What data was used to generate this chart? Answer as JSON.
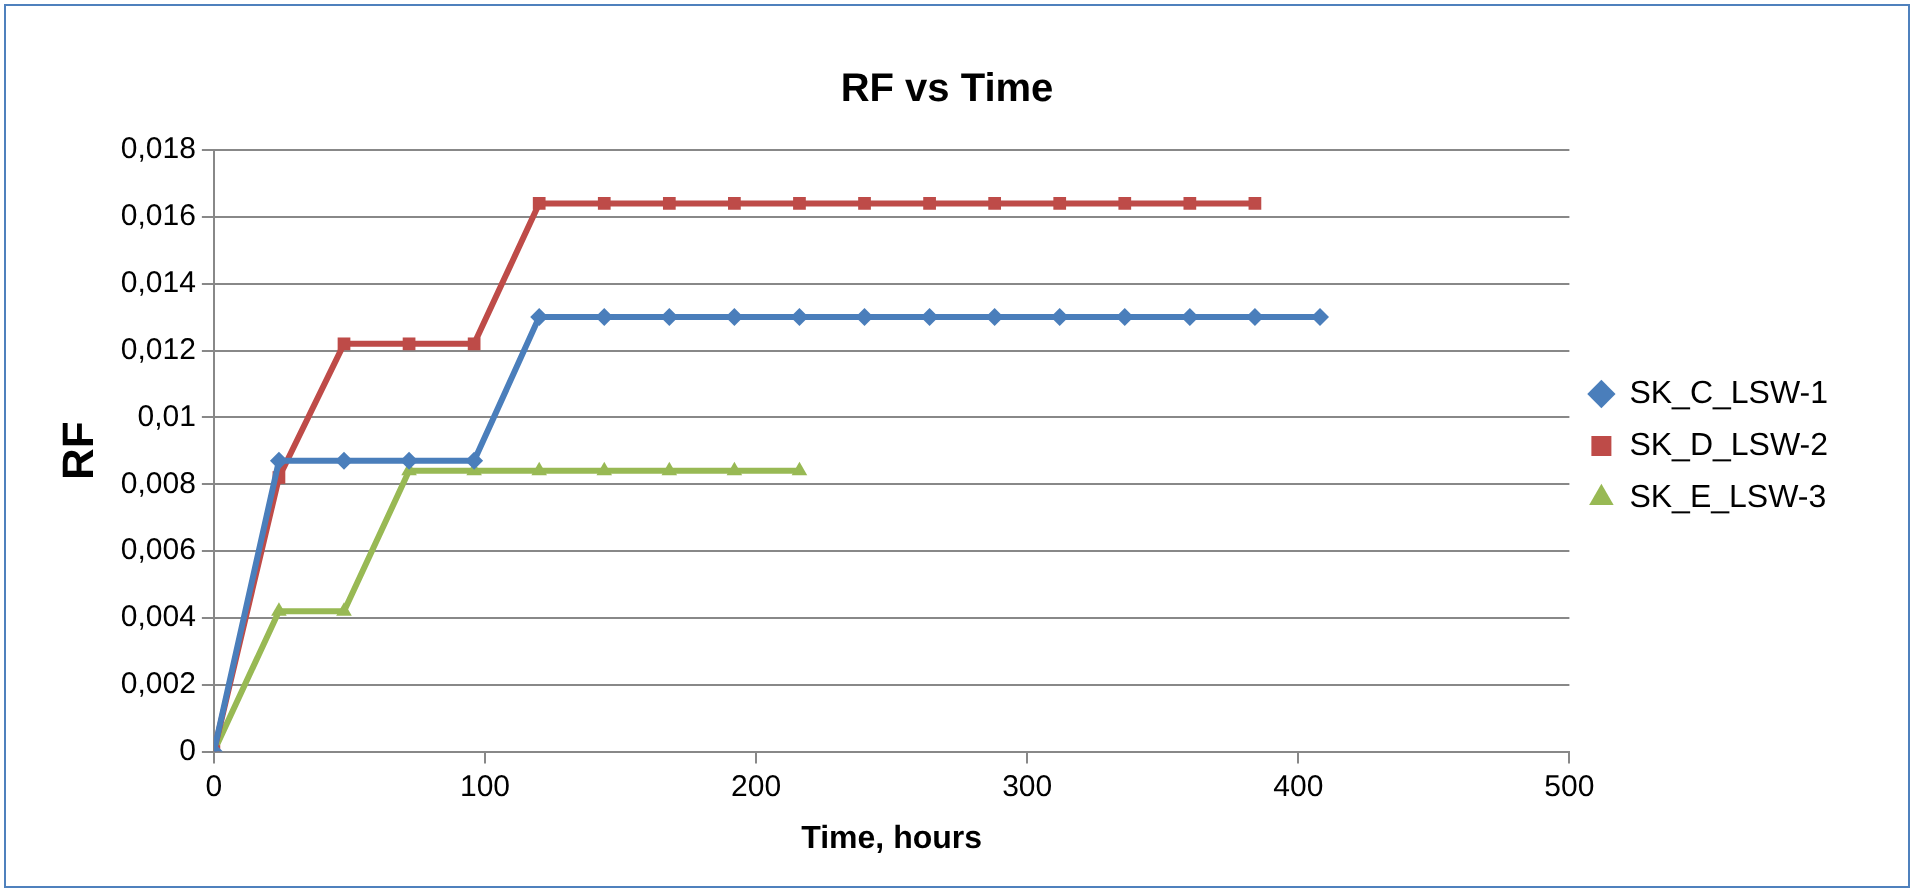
{
  "chart_data": {
    "type": "line",
    "title": "RF vs Time",
    "xlabel": "Time, hours",
    "ylabel": "RF",
    "x": [
      0,
      24,
      48,
      72,
      96,
      120,
      144,
      168,
      192,
      216,
      240,
      264,
      288,
      312,
      336,
      360,
      384,
      408
    ],
    "series": [
      {
        "name": "SK_C_LSW-1",
        "color": "#4a7ebb",
        "marker": "diamond",
        "values": [
          0,
          0.0087,
          0.0087,
          0.0087,
          0.0087,
          0.013,
          0.013,
          0.013,
          0.013,
          0.013,
          0.013,
          0.013,
          0.013,
          0.013,
          0.013,
          0.013,
          0.013,
          0.013
        ]
      },
      {
        "name": "SK_D_LSW-2",
        "color": "#be4b48",
        "marker": "square",
        "values": [
          0,
          0.0082,
          0.0122,
          0.0122,
          0.0122,
          0.0164,
          0.0164,
          0.0164,
          0.0164,
          0.0164,
          0.0164,
          0.0164,
          0.0164,
          0.0164,
          0.0164,
          0.0164,
          0.0164,
          null
        ]
      },
      {
        "name": "SK_E_LSW-3",
        "color": "#98b954",
        "marker": "triangle",
        "values": [
          0,
          0.0042,
          0.0042,
          0.0084,
          0.0084,
          0.0084,
          0.0084,
          0.0084,
          0.0084,
          0.0084,
          null,
          null,
          null,
          null,
          null,
          null,
          null,
          null
        ]
      }
    ],
    "xlim": [
      0,
      500
    ],
    "xticks": [
      0,
      100,
      200,
      300,
      400,
      500
    ],
    "ylim": [
      0,
      0.018
    ],
    "yticks": [
      0,
      {
        "value": 0.002,
        "label": "0,002"
      },
      {
        "value": 0.004,
        "label": "0,004"
      },
      {
        "value": 0.006,
        "label": "0,006"
      },
      {
        "value": 0.008,
        "label": "0,008"
      },
      {
        "value": 0.01,
        "label": "0,01"
      },
      {
        "value": 0.012,
        "label": "0,012"
      },
      {
        "value": 0.014,
        "label": "0,014"
      },
      {
        "value": 0.016,
        "label": "0,016"
      },
      {
        "value": 0.018,
        "label": "0,018"
      }
    ],
    "grid": "y",
    "legend": "right",
    "line_style": "solid"
  }
}
